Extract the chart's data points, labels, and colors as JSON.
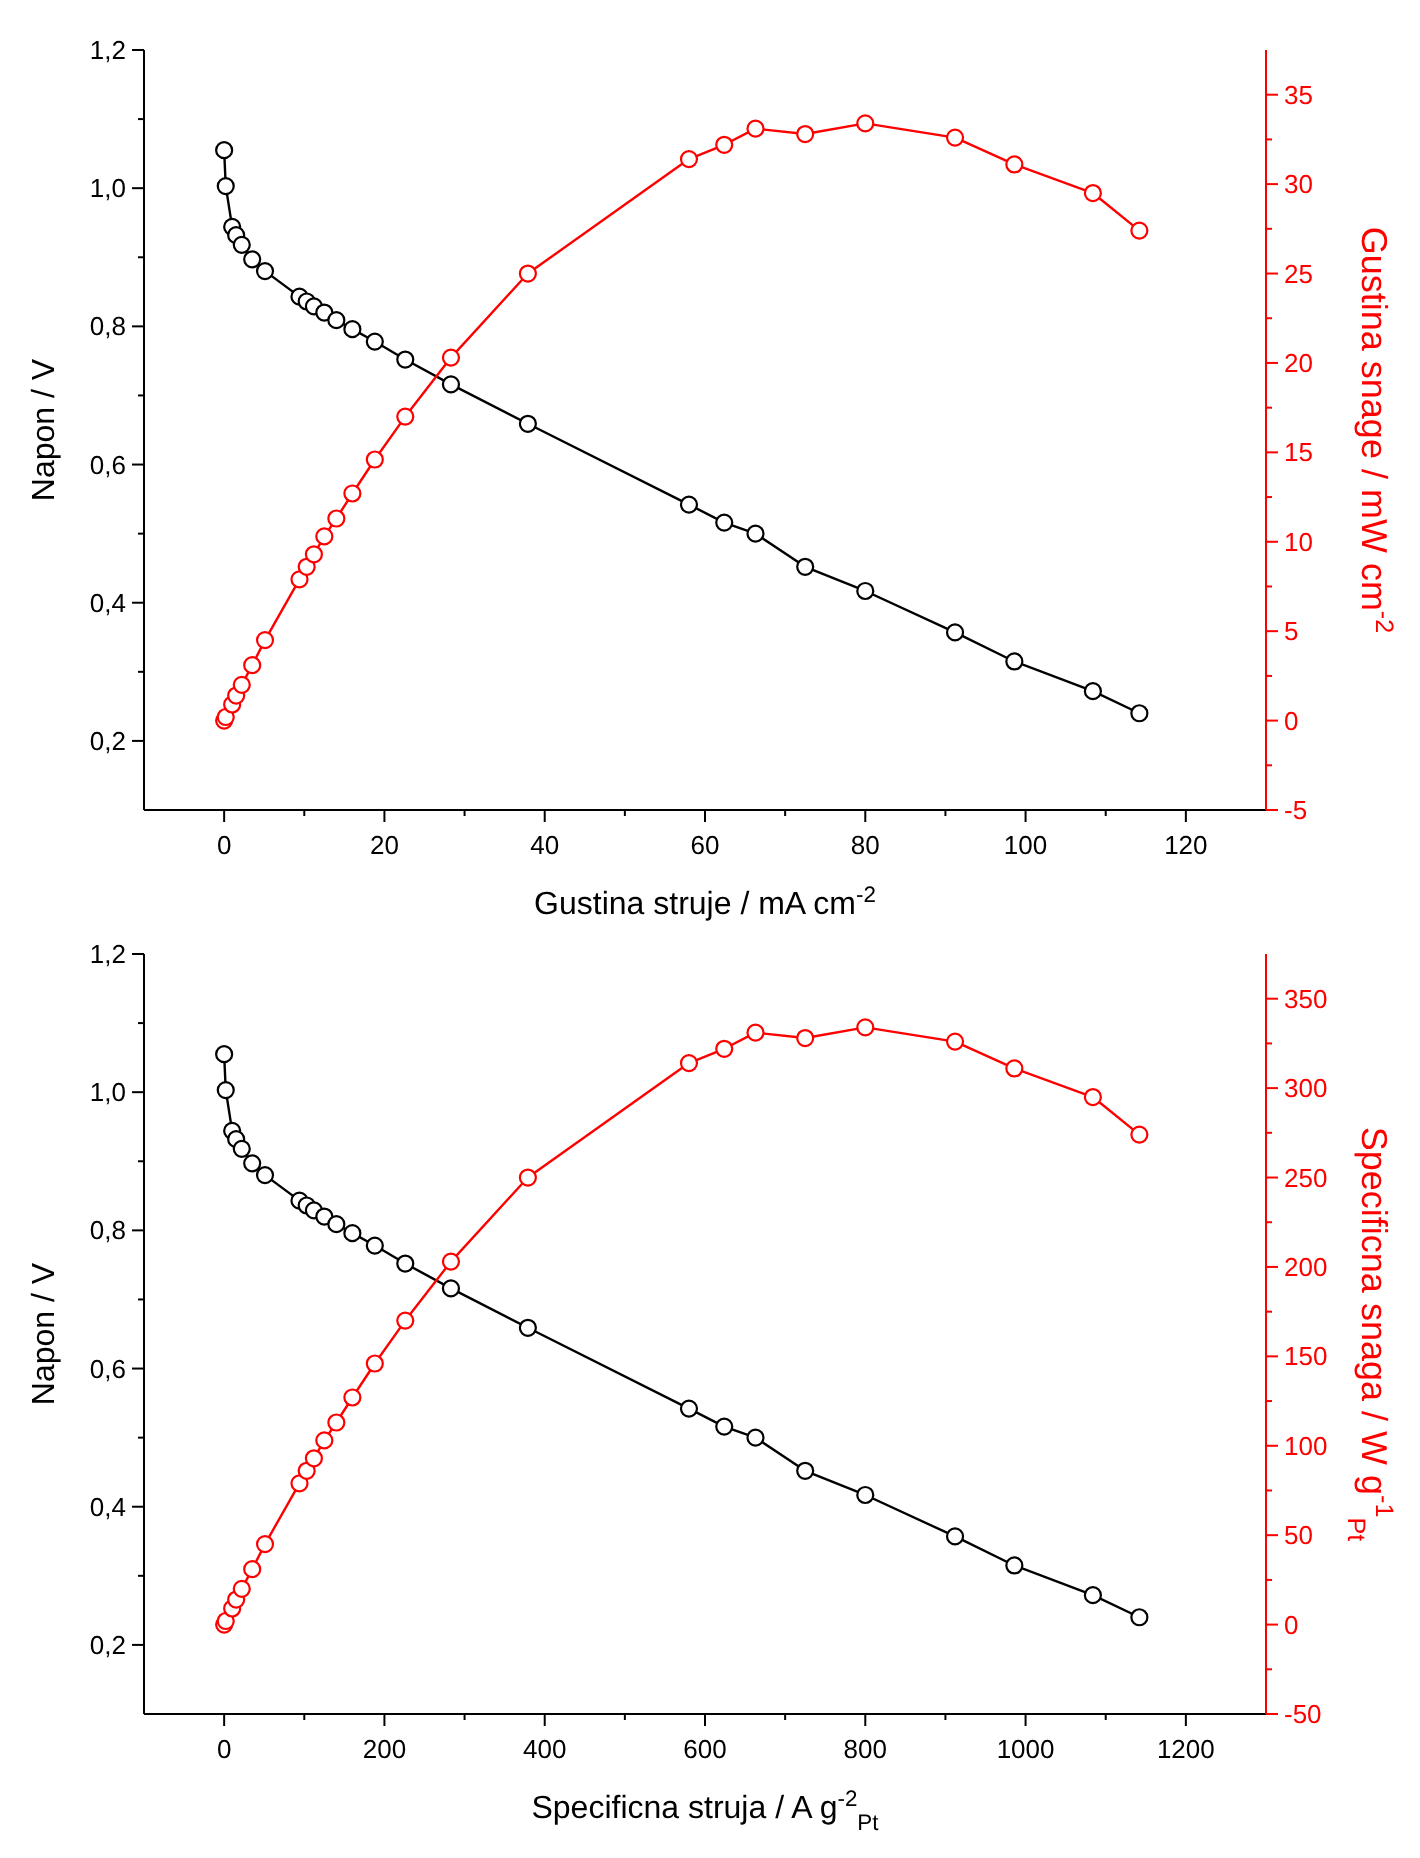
{
  "chart_data": [
    {
      "type": "line",
      "marker": "circle",
      "line_style": "solid",
      "grid": false,
      "xlabel": "Gustina struje / mA cm$^{-2}$",
      "ylabel": "Napon / V",
      "y2label": "Gustina snage / mW cm$^{-2}$",
      "x": [
        0,
        0.2,
        1.0,
        1.5,
        2.2,
        3.5,
        5.1,
        9.4,
        10.3,
        11.2,
        12.5,
        14.0,
        16.0,
        18.8,
        22.6,
        28.3,
        37.9,
        58.0,
        62.4,
        66.3,
        72.5,
        80.0,
        91.2,
        98.6,
        108.4,
        114.2
      ],
      "series": [
        {
          "color": "#000000",
          "values": [
            1.055,
            1.003,
            0.944,
            0.932,
            0.918,
            0.897,
            0.88,
            0.843,
            0.836,
            0.829,
            0.82,
            0.809,
            0.796,
            0.778,
            0.752,
            0.716,
            0.659,
            0.542,
            0.516,
            0.5,
            0.452,
            0.417,
            0.357,
            0.315,
            0.272,
            0.24
          ]
        },
        {
          "color": "#ff0000",
          "axis": "y2",
          "values": [
            0,
            0.2,
            0.9,
            1.4,
            2.0,
            3.1,
            4.5,
            7.9,
            8.6,
            9.3,
            10.3,
            11.3,
            12.7,
            14.6,
            17.0,
            20.3,
            25.0,
            31.4,
            32.2,
            33.1,
            32.8,
            33.4,
            32.6,
            31.1,
            29.5,
            27.4
          ]
        }
      ],
      "xlim": [
        -10,
        130
      ],
      "xticks": [
        0,
        {
          "value": 10,
          "label": null
        },
        20,
        {
          "value": 30,
          "label": null
        },
        40,
        {
          "value": 50,
          "label": null
        },
        60,
        {
          "value": 70,
          "label": null
        },
        80,
        {
          "value": 90,
          "label": null
        },
        100,
        {
          "value": 110,
          "label": null
        },
        120
      ],
      "ylim": [
        0.1,
        1.2
      ],
      "yticks": [
        {
          "value": 0.2,
          "label": "0,2"
        },
        {
          "value": 0.3,
          "label": null
        },
        {
          "value": 0.4,
          "label": "0,4"
        },
        {
          "value": 0.5,
          "label": null
        },
        {
          "value": 0.6,
          "label": "0,6"
        },
        {
          "value": 0.7,
          "label": null
        },
        {
          "value": 0.8,
          "label": "0,8"
        },
        {
          "value": 0.9,
          "label": null
        },
        {
          "value": 1.0,
          "label": "1,0"
        },
        {
          "value": 1.1,
          "label": null
        },
        {
          "value": 1.2,
          "label": "1,2"
        }
      ],
      "y2lim": [
        -5,
        37.5
      ],
      "y2ticks": [
        -5,
        {
          "value": -2.5,
          "label": null
        },
        0,
        {
          "value": 2.5,
          "label": null
        },
        5,
        {
          "value": 7.5,
          "label": null
        },
        10,
        {
          "value": 12.5,
          "label": null
        },
        15,
        {
          "value": 17.5,
          "label": null
        },
        20,
        {
          "value": 22.5,
          "label": null
        },
        25,
        {
          "value": 27.5,
          "label": null
        },
        30,
        {
          "value": 32.5,
          "label": null
        },
        35
      ]
    },
    {
      "type": "line",
      "marker": "circle",
      "line_style": "solid",
      "grid": false,
      "xlabel": "Specificna struja / A g$^{-2}$$_{Pt}$",
      "ylabel": "Napon / V",
      "y2label": "Specificna snaga / W g$^{-1}$$_{Pt}$",
      "x": [
        0,
        2,
        10,
        15,
        22,
        35,
        51,
        94,
        103,
        112,
        125,
        140,
        160,
        188,
        226,
        283,
        379,
        580,
        624,
        663,
        725,
        800,
        912,
        986,
        1084,
        1142
      ],
      "series": [
        {
          "color": "#000000",
          "values": [
            1.055,
            1.003,
            0.944,
            0.932,
            0.918,
            0.897,
            0.88,
            0.843,
            0.836,
            0.829,
            0.82,
            0.809,
            0.796,
            0.778,
            0.752,
            0.716,
            0.659,
            0.542,
            0.516,
            0.5,
            0.452,
            0.417,
            0.357,
            0.315,
            0.272,
            0.24
          ]
        },
        {
          "color": "#ff0000",
          "axis": "y2",
          "values": [
            0,
            2,
            9,
            14,
            20,
            31,
            45,
            79,
            86,
            93,
            103,
            113,
            127,
            146,
            170,
            203,
            250,
            314,
            322,
            331,
            328,
            334,
            326,
            311,
            295,
            274
          ]
        }
      ],
      "xlim": [
        -100,
        1300
      ],
      "xticks": [
        0,
        {
          "value": 100,
          "label": null
        },
        200,
        {
          "value": 300,
          "label": null
        },
        400,
        {
          "value": 500,
          "label": null
        },
        600,
        {
          "value": 700,
          "label": null
        },
        800,
        {
          "value": 900,
          "label": null
        },
        1000,
        {
          "value": 1100,
          "label": null
        },
        1200
      ],
      "ylim": [
        0.1,
        1.2
      ],
      "yticks": [
        {
          "value": 0.2,
          "label": "0,2"
        },
        {
          "value": 0.3,
          "label": null
        },
        {
          "value": 0.4,
          "label": "0,4"
        },
        {
          "value": 0.5,
          "label": null
        },
        {
          "value": 0.6,
          "label": "0,6"
        },
        {
          "value": 0.7,
          "label": null
        },
        {
          "value": 0.8,
          "label": "0,8"
        },
        {
          "value": 0.9,
          "label": null
        },
        {
          "value": 1.0,
          "label": "1,0"
        },
        {
          "value": 1.1,
          "label": null
        },
        {
          "value": 1.2,
          "label": "1,2"
        }
      ],
      "y2lim": [
        -50,
        375
      ],
      "y2ticks": [
        -50,
        {
          "value": -25,
          "label": null
        },
        0,
        {
          "value": 25,
          "label": null
        },
        50,
        {
          "value": 75,
          "label": null
        },
        100,
        {
          "value": 125,
          "label": null
        },
        150,
        {
          "value": 175,
          "label": null
        },
        200,
        {
          "value": 225,
          "label": null
        },
        250,
        {
          "value": 275,
          "label": null
        },
        300,
        {
          "value": 325,
          "label": null
        },
        350
      ]
    }
  ]
}
